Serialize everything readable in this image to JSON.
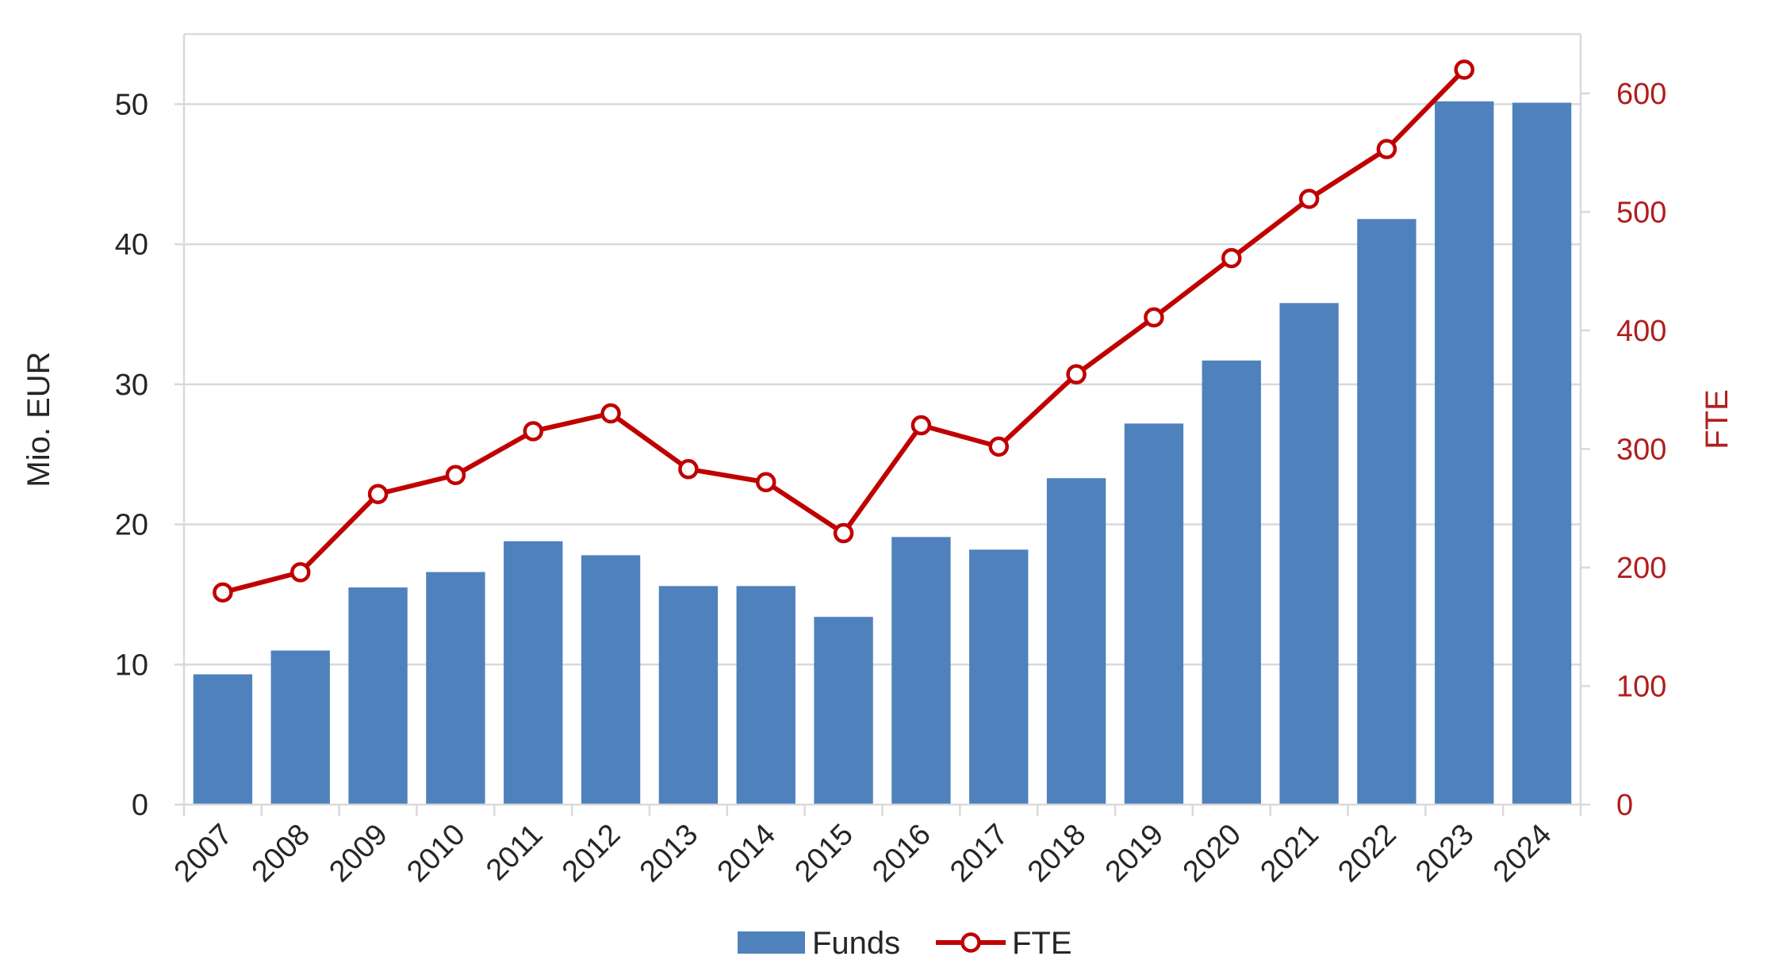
{
  "chart_data": {
    "type": "bar",
    "categories": [
      "2007",
      "2008",
      "2009",
      "2010",
      "2011",
      "2012",
      "2013",
      "2014",
      "2015",
      "2016",
      "2017",
      "2018",
      "2019",
      "2020",
      "2021",
      "2022",
      "2023",
      "2024"
    ],
    "series": [
      {
        "name": "Funds",
        "type": "bar",
        "axis": "left",
        "color": "#4f81bd",
        "values": [
          9.3,
          11.0,
          15.5,
          16.6,
          18.8,
          17.8,
          15.6,
          15.6,
          13.4,
          19.1,
          18.2,
          23.3,
          27.2,
          31.7,
          35.8,
          41.8,
          50.2,
          50.1
        ]
      },
      {
        "name": "FTE",
        "type": "line",
        "axis": "right",
        "color": "#c00000",
        "values": [
          179,
          196,
          262,
          278,
          315,
          330,
          283,
          272,
          229,
          320,
          302,
          363,
          411,
          461,
          511,
          553,
          620,
          null
        ]
      }
    ],
    "ylabel": "Mio. EUR",
    "y2label": "FTE",
    "ylim": [
      0,
      55
    ],
    "y2lim": [
      0,
      650
    ],
    "yticks": [
      "0",
      "10",
      "20",
      "30",
      "40",
      "50"
    ],
    "y2ticks": [
      "0",
      "100",
      "200",
      "300",
      "400",
      "500",
      "600"
    ],
    "grid": true,
    "legend": "bottom-center"
  },
  "legend": {
    "funds_label": "Funds",
    "fte_label": "FTE"
  }
}
